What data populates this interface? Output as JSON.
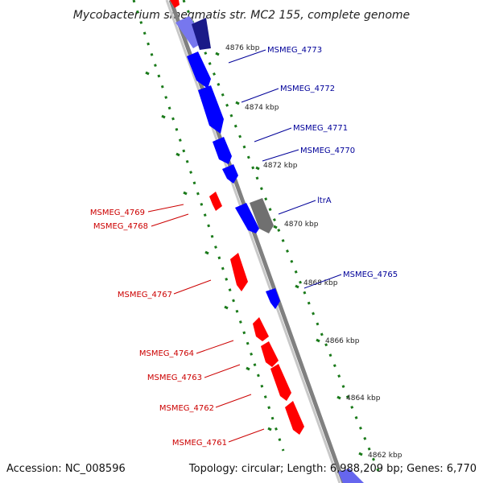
{
  "title": "Mycobacterium smegmatis str. MC2 155, complete genome",
  "footer": {
    "accession": "Accession: NC_008596",
    "topology": "Topology: circular; Length: 6,988,209 bp; Genes: 6,770"
  },
  "colors": {
    "forward": "#0000ff",
    "reverse": "#ff0000",
    "rna": "#707070",
    "forward_label": "#000099",
    "reverse_label": "#cc0000",
    "tick": "#1a7a1a",
    "backbone": "#808080"
  },
  "ticks": [
    "4876 kbp",
    "4874 kbp",
    "4872 kbp",
    "4870 kbp",
    "4868 kbp",
    "4866 kbp",
    "4864 kbp",
    "4862 kbp"
  ],
  "genes_forward": [
    "MSMEG_4773",
    "MSMEG_4772",
    "MSMEG_4771",
    "MSMEG_4770",
    "ltrA",
    "MSMEG_4765"
  ],
  "genes_reverse": [
    "MSMEG_4769",
    "MSMEG_4768",
    "MSMEG_4767",
    "MSMEG_4764",
    "MSMEG_4763",
    "MSMEG_4762",
    "MSMEG_4761"
  ]
}
